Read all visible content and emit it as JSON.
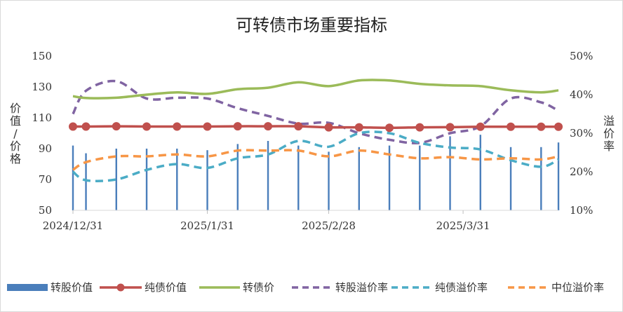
{
  "chart_data": {
    "type": "line",
    "title": "可转债市场重要指标",
    "ylabel": "价值/价格",
    "y2label": "溢价率",
    "ylim": [
      50,
      150
    ],
    "y2lim": [
      0.1,
      0.5
    ],
    "yticks": [
      "50",
      "70",
      "90",
      "110",
      "130",
      "150"
    ],
    "y2ticks": [
      "10%",
      "20%",
      "30%",
      "40%",
      "50%"
    ],
    "xticks": [
      {
        "label": "2024/12/31",
        "date": "2024-12-31"
      },
      {
        "label": "2025/1/31",
        "date": "2025-01-31"
      },
      {
        "label": "2025/2/28",
        "date": "2025-02-28"
      },
      {
        "label": "2025/3/31",
        "date": "2025-03-31"
      }
    ],
    "xrange": [
      "2024-12-31",
      "2025-04-22"
    ],
    "grid": "none",
    "legend_position": "bottom",
    "dates": [
      "2024-12-31",
      "2025-01-03",
      "2025-01-10",
      "2025-01-17",
      "2025-01-24",
      "2025-01-31",
      "2025-02-07",
      "2025-02-14",
      "2025-02-21",
      "2025-02-28",
      "2025-03-07",
      "2025-03-14",
      "2025-03-21",
      "2025-03-28",
      "2025-04-04",
      "2025-04-11",
      "2025-04-18",
      "2025-04-22"
    ],
    "series": [
      {
        "name": "转股价值",
        "type": "bar",
        "axis": "left",
        "color": "#4a7ebb",
        "values": [
          92,
          87,
          90,
          90,
          90,
          89,
          93,
          95,
          92,
          88,
          91,
          92,
          92,
          98,
          99,
          91,
          91,
          94
        ]
      },
      {
        "name": "纯债价值",
        "type": "line",
        "axis": "left",
        "color": "#c0504d",
        "marker": "circle",
        "dash": "solid",
        "values": [
          104.3,
          104.3,
          104.5,
          104.3,
          104.3,
          104.3,
          104.5,
          104.5,
          104.5,
          103.8,
          103.8,
          103.5,
          103.8,
          103.9,
          104.2,
          104.2,
          104.2,
          104.2
        ]
      },
      {
        "name": "转债价",
        "type": "line",
        "axis": "left",
        "color": "#9bbb59",
        "dash": "solid",
        "values": [
          124,
          122.8,
          123,
          125,
          126.5,
          125.5,
          128.5,
          129.5,
          133,
          130.5,
          134.2,
          134.2,
          132,
          131,
          130.5,
          127.8,
          126.5,
          127.8
        ]
      },
      {
        "name": "转股溢价率",
        "type": "line",
        "axis": "right",
        "color": "#8064a2",
        "dash": "dashed",
        "values": [
          0.35,
          0.41,
          0.435,
          0.39,
          0.392,
          0.39,
          0.365,
          0.345,
          0.325,
          0.327,
          0.3,
          0.283,
          0.275,
          0.3,
          0.318,
          0.39,
          0.38,
          0.358
        ]
      },
      {
        "name": "纯债溢价率",
        "type": "line",
        "axis": "right",
        "color": "#4bacc6",
        "dash": "dashed",
        "values": [
          0.2,
          0.178,
          0.18,
          0.205,
          0.22,
          0.21,
          0.235,
          0.245,
          0.28,
          0.265,
          0.3,
          0.3,
          0.275,
          0.263,
          0.258,
          0.23,
          0.213,
          0.232
        ]
      },
      {
        "name": "中位溢价率",
        "type": "line",
        "axis": "right",
        "color": "#f79646",
        "dash": "dashed",
        "values": [
          0.205,
          0.225,
          0.24,
          0.24,
          0.245,
          0.24,
          0.255,
          0.255,
          0.255,
          0.24,
          0.255,
          0.245,
          0.235,
          0.238,
          0.232,
          0.235,
          0.232,
          0.24
        ]
      }
    ]
  }
}
